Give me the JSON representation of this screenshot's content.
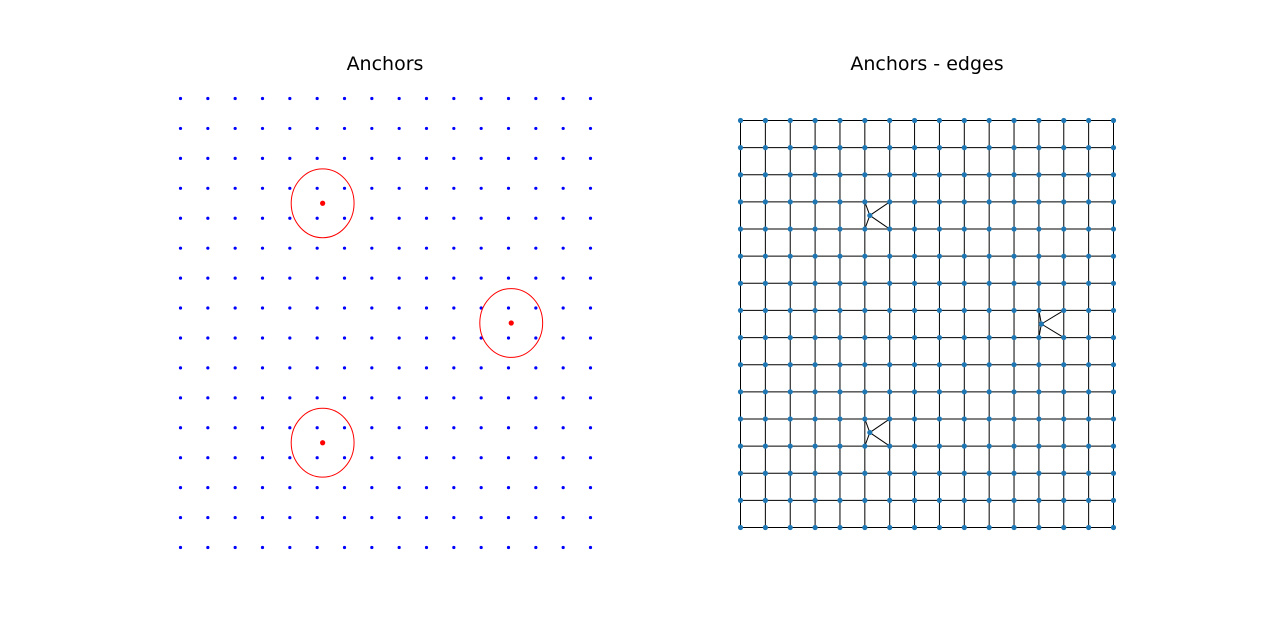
{
  "chart_data": [
    {
      "type": "scatter",
      "title": "Anchors",
      "grid": false,
      "axes_visible": false,
      "grid_points": {
        "columns": 16,
        "rows": 16,
        "x_range": [
          0,
          15
        ],
        "y_range": [
          0,
          15
        ],
        "color": "#0000ff"
      },
      "anchors": {
        "color": "#ff0000",
        "points": [
          {
            "x": 5.2,
            "y": 11.5
          },
          {
            "x": 12.1,
            "y": 7.5
          },
          {
            "x": 5.2,
            "y": 3.5
          }
        ],
        "radius_x": 1.15,
        "radius_y": 1.15
      }
    },
    {
      "type": "scatter",
      "title": "Anchors - edges",
      "grid": false,
      "axes_visible": false,
      "grid_points": {
        "columns": 16,
        "rows": 16,
        "x_range": [
          0,
          15
        ],
        "y_range": [
          0,
          15
        ],
        "color": "#1f77b4"
      },
      "edge_color": "#000000",
      "anchors": {
        "color": "#1f77b4",
        "points": [
          {
            "x": 5.2,
            "y": 11.5
          },
          {
            "x": 12.1,
            "y": 7.5
          },
          {
            "x": 5.2,
            "y": 3.5
          }
        ]
      }
    }
  ]
}
